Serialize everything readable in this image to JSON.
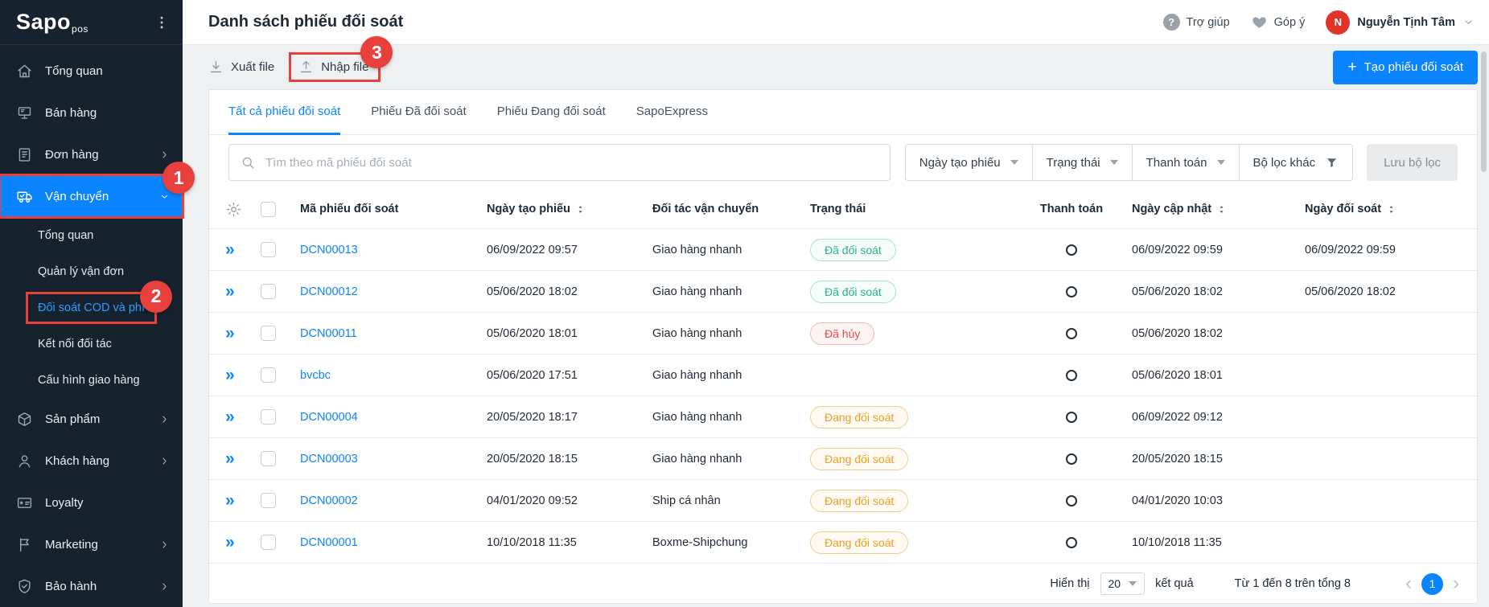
{
  "colors": {
    "accent": "#0b84ff",
    "annotation_red": "#e8413d",
    "success": "#2fb380",
    "danger": "#e84c4c",
    "warning": "#e7a12a",
    "sidebar_bg": "#17222f",
    "avatar_bg": "#df3427"
  },
  "sidebar": {
    "logo_text": "Sapo",
    "logo_suffix": "pos",
    "items": [
      {
        "name": "tong-quan",
        "label": "Tổng quan",
        "icon": "home"
      },
      {
        "name": "ban-hang",
        "label": "Bán hàng",
        "icon": "pos"
      },
      {
        "name": "don-hang",
        "label": "Đơn hàng",
        "icon": "orders",
        "expand": "right"
      },
      {
        "name": "van-chuyen",
        "label": "Vận chuyển",
        "icon": "truck",
        "expand": "down",
        "active": true,
        "badge": "1"
      },
      {
        "name": "van-chuyen-tong-quan",
        "label": "Tổng quan",
        "sub": true
      },
      {
        "name": "quan-ly-van-don",
        "label": "Quản lý vận đơn",
        "sub": true
      },
      {
        "name": "doi-soat-cod-va-phi",
        "label": "Đối soát COD và phí",
        "sub": true,
        "selected": true,
        "badge": "2"
      },
      {
        "name": "ket-noi-doi-tac",
        "label": "Kết nối đối tác",
        "sub": true
      },
      {
        "name": "cau-hinh-giao-hang",
        "label": "Cấu hình giao hàng",
        "sub": true
      },
      {
        "name": "san-pham",
        "label": "Sản phẩm",
        "icon": "box",
        "expand": "right"
      },
      {
        "name": "khach-hang",
        "label": "Khách hàng",
        "icon": "person",
        "expand": "right"
      },
      {
        "name": "loyalty",
        "label": "Loyalty",
        "icon": "card"
      },
      {
        "name": "marketing",
        "label": "Marketing",
        "icon": "flag",
        "expand": "right"
      },
      {
        "name": "bao-hanh",
        "label": "Bảo hành",
        "icon": "shield",
        "expand": "right"
      }
    ]
  },
  "header": {
    "title": "Danh sách phiếu đối soát",
    "help_label": "Trợ giúp",
    "feedback_label": "Góp ý",
    "user_name": "Nguyễn Tịnh Tâm",
    "avatar_initial": "N"
  },
  "toolbar": {
    "export_label": "Xuất file",
    "import_label": "Nhập file",
    "create_label": "Tạo phiếu đối soát"
  },
  "annotations": {
    "step1": "1",
    "step2": "2",
    "step3": "3"
  },
  "tabs": [
    {
      "label": "Tất cả phiếu đối soát",
      "active": true
    },
    {
      "label": "Phiếu Đã đối soát"
    },
    {
      "label": "Phiếu Đang đối soát"
    },
    {
      "label": "SapoExpress"
    }
  ],
  "filters": {
    "search_placeholder": "Tìm theo mã phiếu đối soát",
    "dropdowns": [
      {
        "label": "Ngày tạo phiếu"
      },
      {
        "label": "Trạng thái"
      },
      {
        "label": "Thanh toán"
      }
    ],
    "more_label": "Bộ lọc khác",
    "save_label": "Lưu bộ lọc"
  },
  "table": {
    "columns": [
      {
        "label": "Mã phiếu đối soát"
      },
      {
        "label": "Ngày tạo phiếu",
        "sortable": true
      },
      {
        "label": "Đối tác vận chuyển"
      },
      {
        "label": "Trạng thái"
      },
      {
        "label": "Thanh toán",
        "align": "center"
      },
      {
        "label": "Ngày cập nhật",
        "sortable": true
      },
      {
        "label": "Ngày đối soát",
        "sortable": true
      }
    ],
    "rows": [
      {
        "code": "DCN00013",
        "created": "06/09/2022 09:57",
        "partner": "Giao hàng nhanh",
        "status": "Đã đối soát",
        "status_type": "success",
        "payment_icon": "unpaid-circle",
        "updated": "06/09/2022 09:59",
        "reconciled": "06/09/2022 09:59"
      },
      {
        "code": "DCN00012",
        "created": "05/06/2020 18:02",
        "partner": "Giao hàng nhanh",
        "status": "Đã đối soát",
        "status_type": "success",
        "payment_icon": "unpaid-circle",
        "updated": "05/06/2020 18:02",
        "reconciled": "05/06/2020 18:02"
      },
      {
        "code": "DCN00011",
        "created": "05/06/2020 18:01",
        "partner": "Giao hàng nhanh",
        "status": "Đã hủy",
        "status_type": "danger",
        "payment_icon": "unpaid-circle",
        "updated": "05/06/2020 18:02",
        "reconciled": ""
      },
      {
        "code": "bvcbc",
        "created": "05/06/2020 17:51",
        "partner": "Giao hàng nhanh",
        "status": "",
        "status_type": "",
        "payment_icon": "unpaid-circle",
        "updated": "05/06/2020 18:01",
        "reconciled": ""
      },
      {
        "code": "DCN00004",
        "created": "20/05/2020 18:17",
        "partner": "Giao hàng nhanh",
        "status": "Đang đối soát",
        "status_type": "warning",
        "payment_icon": "unpaid-circle",
        "updated": "06/09/2022 09:12",
        "reconciled": ""
      },
      {
        "code": "DCN00003",
        "created": "20/05/2020 18:15",
        "partner": "Giao hàng nhanh",
        "status": "Đang đối soát",
        "status_type": "warning",
        "payment_icon": "unpaid-circle",
        "updated": "20/05/2020 18:15",
        "reconciled": ""
      },
      {
        "code": "DCN00002",
        "created": "04/01/2020 09:52",
        "partner": "Ship cá nhân",
        "status": "Đang đối soát",
        "status_type": "warning",
        "payment_icon": "unpaid-circle",
        "updated": "04/01/2020 10:03",
        "reconciled": ""
      },
      {
        "code": "DCN00001",
        "created": "10/10/2018 11:35",
        "partner": "Boxme-Shipchung",
        "status": "Đang đối soát",
        "status_type": "warning",
        "payment_icon": "unpaid-circle",
        "updated": "10/10/2018 11:35",
        "reconciled": ""
      }
    ]
  },
  "footer": {
    "display_label": "Hiển thị",
    "page_size": "20",
    "results_label": "kết quả",
    "range_text": "Từ 1 đến 8 trên tổng 8",
    "current_page": "1"
  }
}
